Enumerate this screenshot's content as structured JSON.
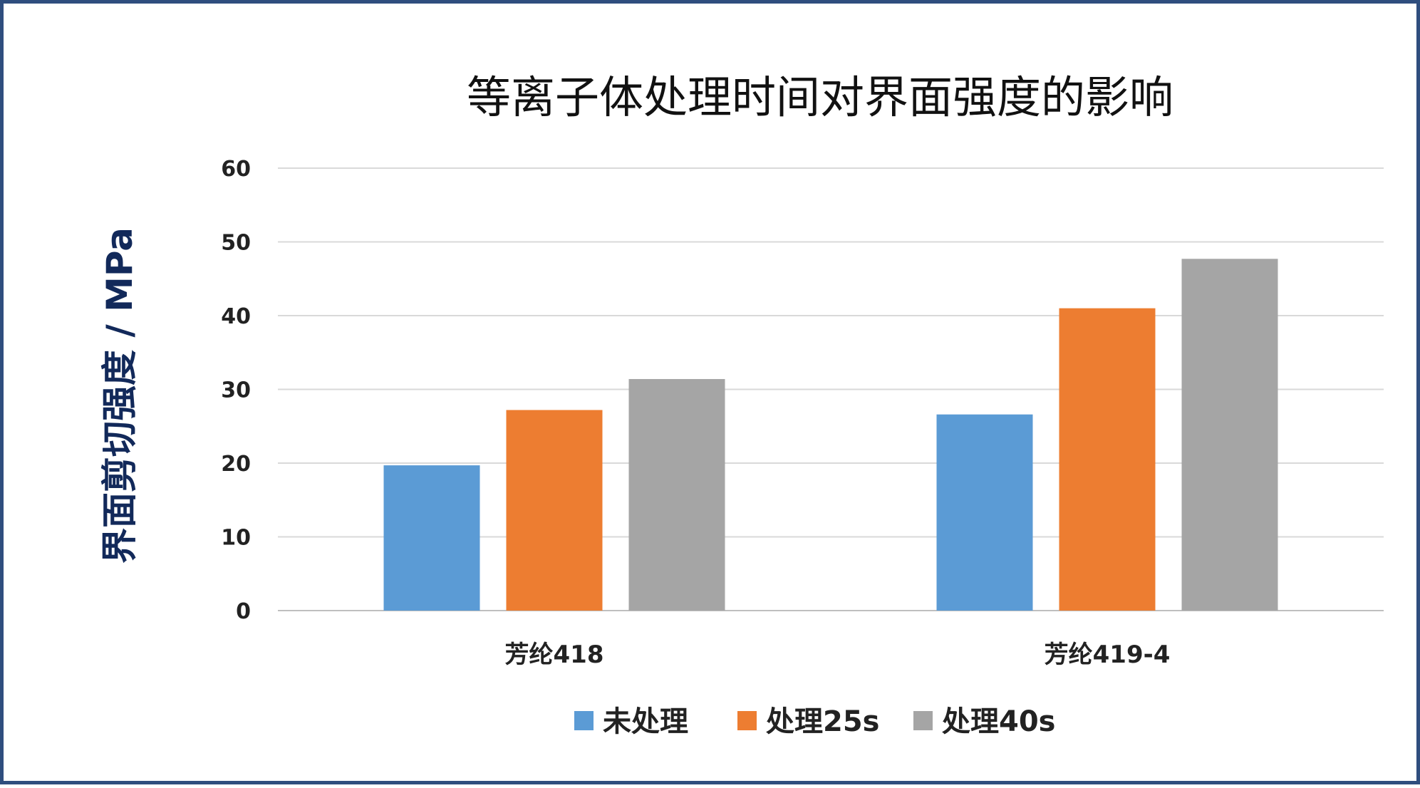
{
  "chart_data": {
    "type": "bar",
    "title": "等离子体处理时间对界面强度的影响",
    "xlabel": "",
    "ylabel": "界面剪切强度 / MPa",
    "categories": [
      "芳纶418",
      "芳纶419-4"
    ],
    "series": [
      {
        "name": "未处理",
        "values": [
          19.7,
          26.6
        ],
        "color": "#5b9bd5"
      },
      {
        "name": "处理25s",
        "values": [
          27.2,
          41.0
        ],
        "color": "#ed7d31"
      },
      {
        "name": "处理40s",
        "values": [
          31.4,
          47.7
        ],
        "color": "#a5a5a5"
      }
    ],
    "ylim": [
      0,
      60
    ],
    "yticks": [
      "0",
      "10",
      "20",
      "30",
      "40",
      "50",
      "60"
    ],
    "grid": true,
    "legend_position": "bottom"
  }
}
